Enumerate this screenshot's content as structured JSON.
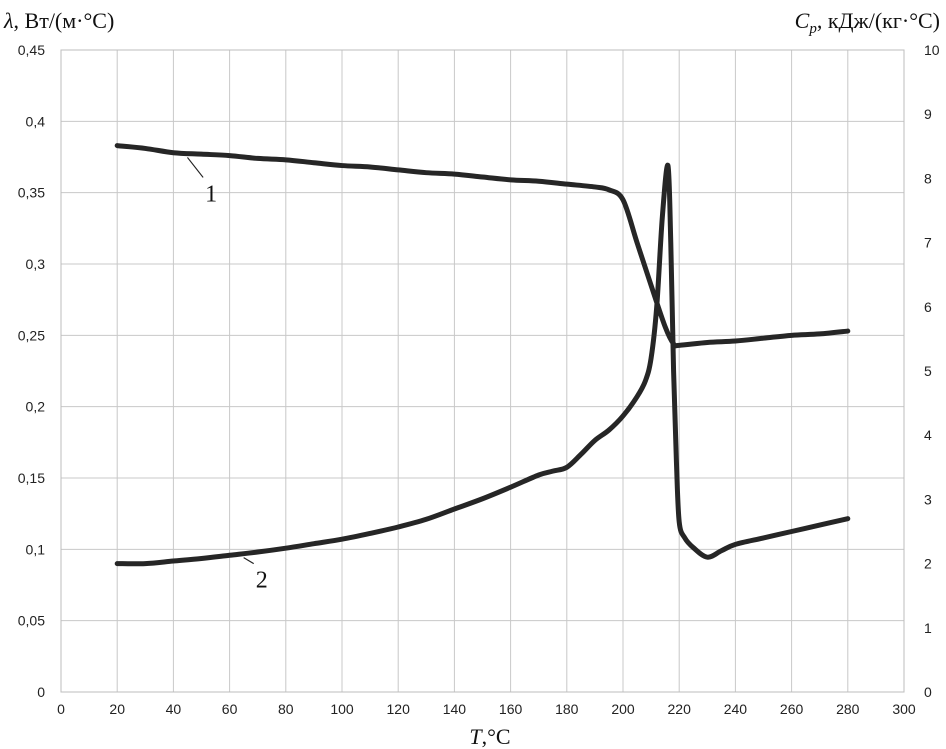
{
  "chart_data": {
    "type": "line",
    "title": "",
    "xlabel": {
      "symbol": "T",
      "unit": ",°C"
    },
    "ylabel_left": {
      "symbol": "λ",
      "unit": ", Вт/(м·°C)"
    },
    "ylabel_right": {
      "symbol": "C",
      "subscript": "p",
      "unit": ", кДж/(кг·°C)"
    },
    "xlim": [
      0,
      300
    ],
    "ylim_left": [
      0,
      0.45
    ],
    "ylim_right": [
      0,
      10
    ],
    "x_ticks": [
      "0",
      "20",
      "40",
      "60",
      "80",
      "100",
      "120",
      "140",
      "160",
      "180",
      "200",
      "220",
      "240",
      "260",
      "280",
      "300"
    ],
    "y_left_ticks": [
      "0",
      "0,05",
      "0,1",
      "0,15",
      "0,2",
      "0,25",
      "0,3",
      "0,35",
      "0,4",
      "0,45"
    ],
    "y_right_ticks": [
      "0",
      "1",
      "2",
      "3",
      "4",
      "5",
      "6",
      "7",
      "8",
      "9",
      "10"
    ],
    "grid": true,
    "series": [
      {
        "name": "1",
        "axis": "left",
        "x": [
          20,
          30,
          40,
          50,
          60,
          70,
          80,
          90,
          100,
          110,
          120,
          130,
          140,
          150,
          160,
          170,
          180,
          190,
          195,
          200,
          205,
          210,
          215,
          218,
          220,
          230,
          240,
          250,
          260,
          270,
          280
        ],
        "y": [
          0.383,
          0.381,
          0.378,
          0.377,
          0.376,
          0.374,
          0.373,
          0.371,
          0.369,
          0.368,
          0.366,
          0.364,
          0.363,
          0.361,
          0.359,
          0.358,
          0.356,
          0.354,
          0.352,
          0.345,
          0.315,
          0.285,
          0.256,
          0.244,
          0.243,
          0.245,
          0.246,
          0.248,
          0.25,
          0.251,
          0.253
        ]
      },
      {
        "name": "2",
        "axis": "right",
        "x": [
          20,
          30,
          40,
          50,
          60,
          70,
          80,
          90,
          100,
          110,
          120,
          130,
          140,
          150,
          160,
          170,
          175,
          180,
          185,
          190,
          195,
          200,
          205,
          208,
          210,
          212,
          214,
          216,
          217,
          218,
          219,
          220,
          222,
          225,
          230,
          235,
          240,
          250,
          260,
          270,
          280
        ],
        "y": [
          2.0,
          2.0,
          2.04,
          2.08,
          2.13,
          2.18,
          2.24,
          2.31,
          2.38,
          2.47,
          2.57,
          2.69,
          2.85,
          3.01,
          3.19,
          3.38,
          3.44,
          3.5,
          3.7,
          3.92,
          4.08,
          4.3,
          4.6,
          4.85,
          5.2,
          6.0,
          7.4,
          8.2,
          7.0,
          5.0,
          3.6,
          2.65,
          2.4,
          2.25,
          2.1,
          2.2,
          2.3,
          2.4,
          2.5,
          2.6,
          2.7
        ]
      }
    ],
    "annotations": [
      {
        "text": "1",
        "series": "1",
        "anchor_x": 45,
        "label_x": 52
      },
      {
        "text": "2",
        "series": "2",
        "anchor_x": 65,
        "label_x": 70
      }
    ]
  }
}
